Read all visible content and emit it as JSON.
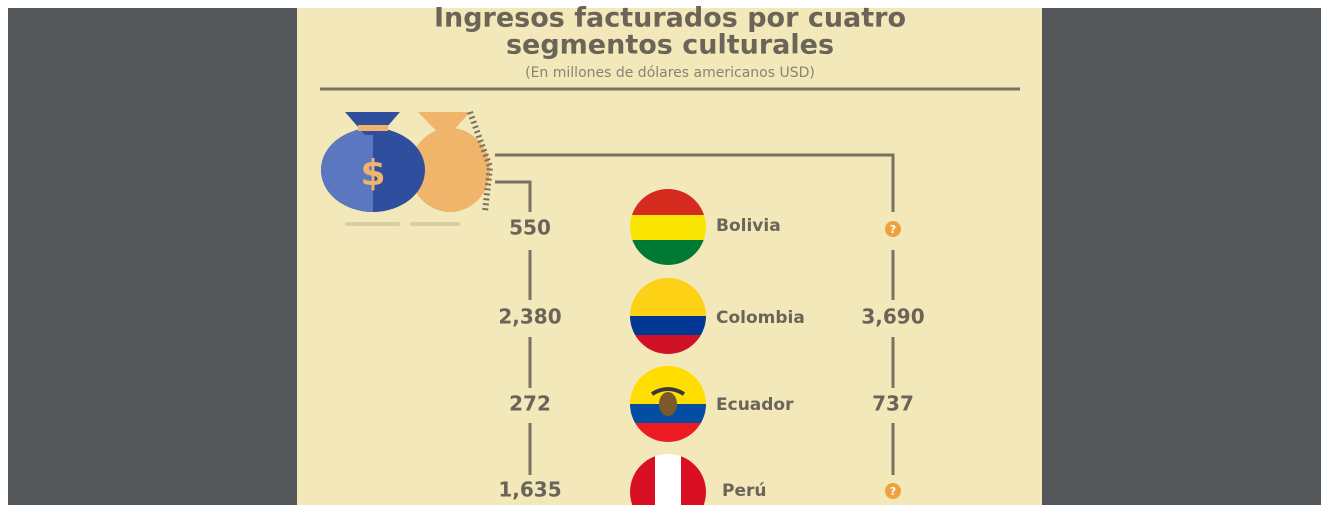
{
  "header": {
    "title_line1": "Ingresos facturados por cuatro",
    "title_line2": "segmentos culturales",
    "subtitle": "(En millones de dólares americanos USD)"
  },
  "rows": [
    {
      "country": "Bolivia",
      "left": "550",
      "right": "?"
    },
    {
      "country": "Colombia",
      "left": "2,380",
      "right": "3,690"
    },
    {
      "country": "Ecuador",
      "left": "272",
      "right": "737"
    },
    {
      "country": "Perú",
      "left": "1,635",
      "right": "?"
    }
  ]
}
